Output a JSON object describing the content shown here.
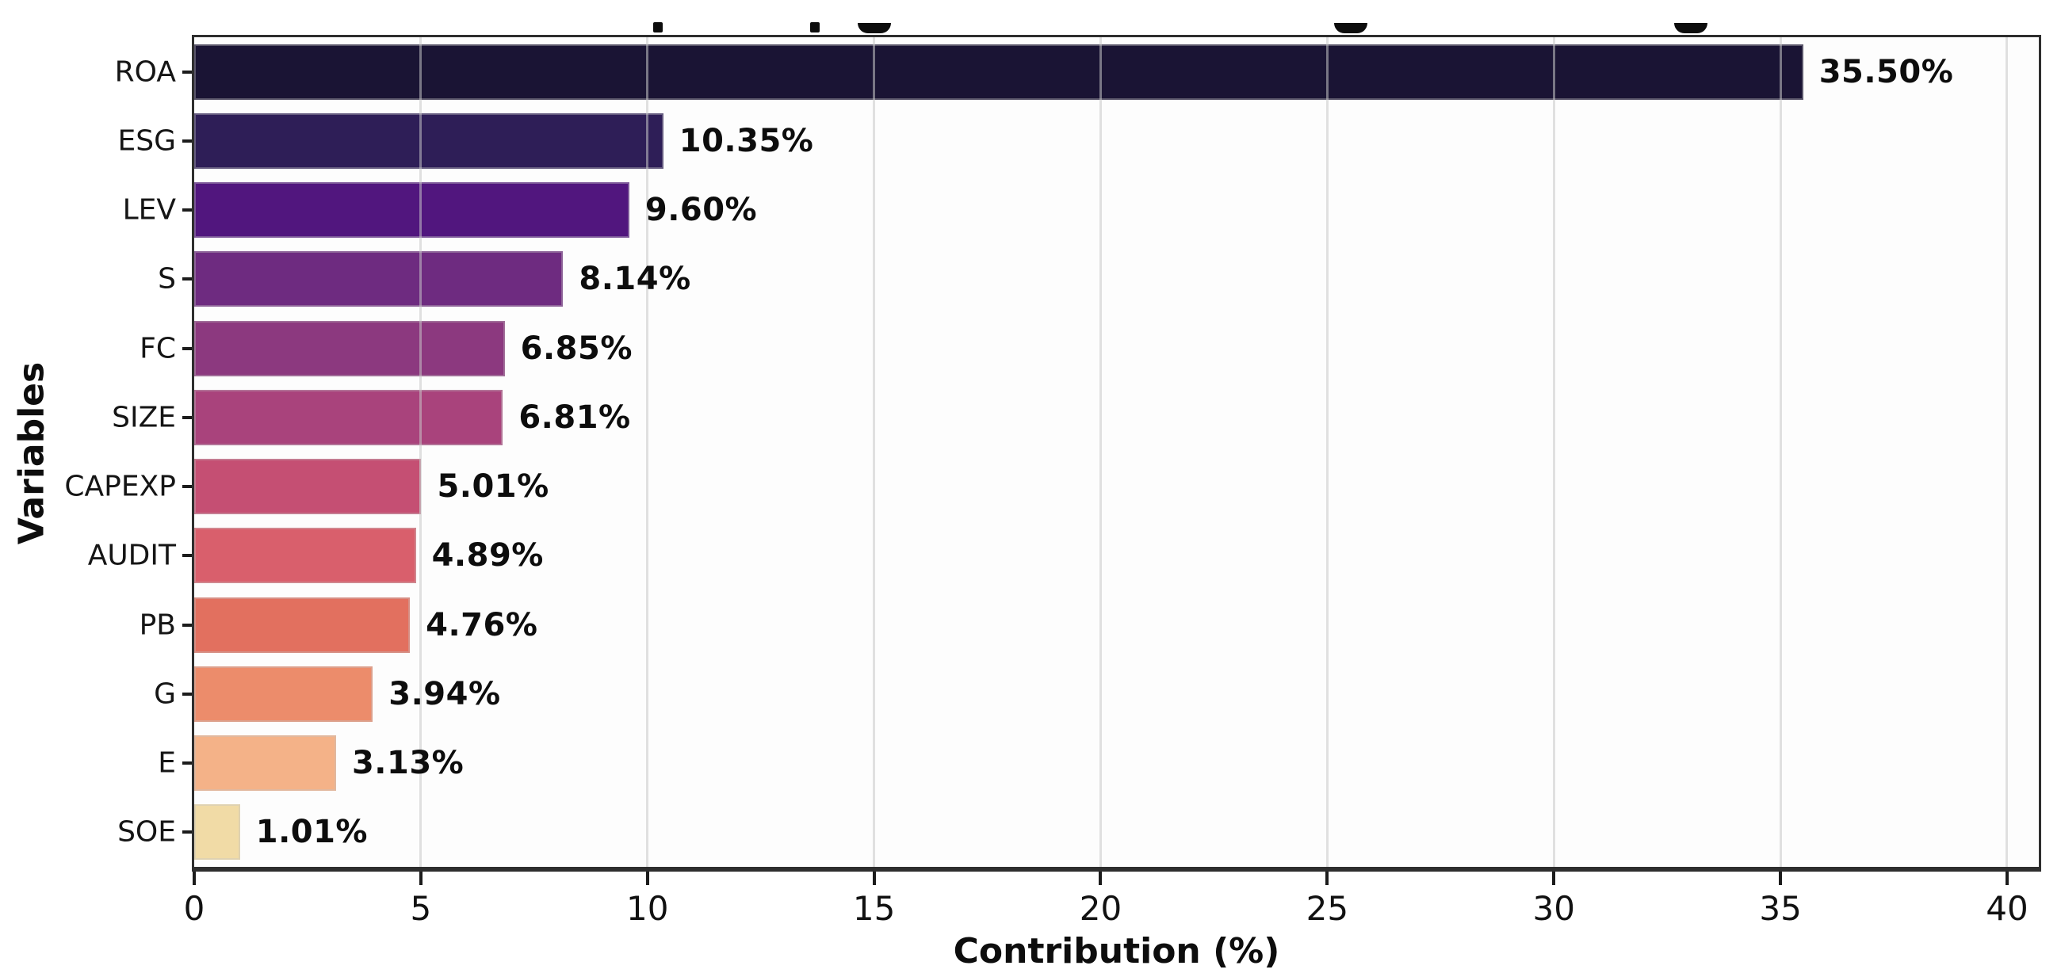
{
  "chart_data": {
    "type": "bar",
    "orientation": "horizontal",
    "title_note": "Title cropped out of frame at top edge; only letter-descender fragments visible",
    "categories": [
      "ROA",
      "ESG",
      "LEV",
      "S",
      "FC",
      "SIZE",
      "CAPEXP",
      "AUDIT",
      "PB",
      "G",
      "E",
      "SOE"
    ],
    "values": [
      35.5,
      10.35,
      9.6,
      8.14,
      6.85,
      6.81,
      5.01,
      4.89,
      4.76,
      3.94,
      3.13,
      1.01
    ],
    "value_labels": [
      "35.50%",
      "10.35%",
      "9.60%",
      "8.14%",
      "6.85%",
      "6.81%",
      "5.01%",
      "4.89%",
      "4.76%",
      "3.94%",
      "3.13%",
      "1.01%"
    ],
    "bar_colors": [
      "#1a1434",
      "#2e1e57",
      "#51167e",
      "#6e2b80",
      "#8c397f",
      "#a9437c",
      "#c54f73",
      "#d95f6c",
      "#e2705f",
      "#ec8c6b",
      "#f4b288",
      "#f1dba6"
    ],
    "xlabel": "Contribution (%)",
    "ylabel": "Variables",
    "xlim": [
      0,
      40.7
    ],
    "x_ticks": [
      0,
      5,
      10,
      15,
      20,
      25,
      30,
      35,
      40
    ],
    "bar_height_fraction": 0.8,
    "grid": "vertical light-gray gridlines at each x tick",
    "legend": "none"
  },
  "colors": {
    "background": "#ffffff",
    "plot_background": "#fdfdfd",
    "spine": "#2e2e2e",
    "grid": "#c8c8c8",
    "text": "#111111"
  }
}
